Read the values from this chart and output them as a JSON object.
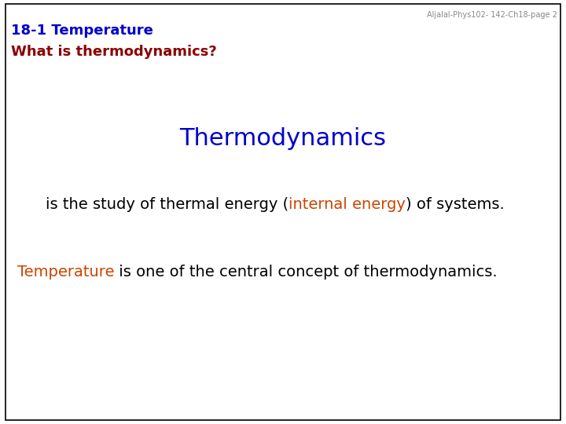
{
  "background_color": "#ffffff",
  "border_color": "#000000",
  "header_line1": "18-1 Temperature",
  "header_line2": "What is thermodynamics?",
  "header_color": "#0000CC",
  "subheader_color": "#8B0000",
  "watermark": "Aljalal-Phys102- 142-Ch18-page 2",
  "watermark_color": "#888888",
  "watermark_fontsize": 7,
  "title_text": "Thermodynamics",
  "title_color": "#0000CC",
  "title_fontsize": 22,
  "line1_parts": [
    {
      "text": "is the study of thermal energy (",
      "color": "#000000"
    },
    {
      "text": "internal energy",
      "color": "#CC4400"
    },
    {
      "text": ") of systems.",
      "color": "#000000"
    }
  ],
  "line1_fontsize": 14,
  "line2_parts": [
    {
      "text": "Temperature",
      "color": "#CC4400"
    },
    {
      "text": " is one of the central concept of thermodynamics.",
      "color": "#000000"
    }
  ],
  "line2_fontsize": 14,
  "header_fontsize": 13,
  "fig_width": 7.2,
  "fig_height": 5.4,
  "dpi": 100
}
